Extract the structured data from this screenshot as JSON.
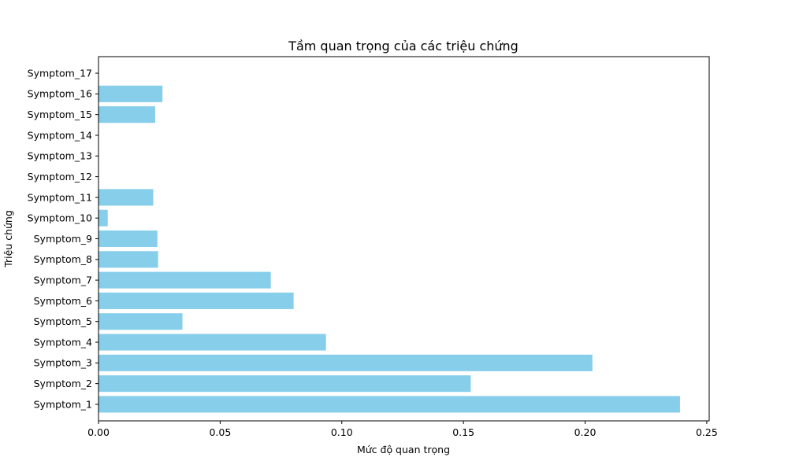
{
  "chart_data": {
    "type": "bar",
    "orientation": "horizontal",
    "title": "Tầm quan trọng của các triệu chứng",
    "xlabel": "Mức độ quan trọng",
    "ylabel": "Triệu chứng",
    "categories": [
      "Symptom_1",
      "Symptom_2",
      "Symptom_3",
      "Symptom_4",
      "Symptom_5",
      "Symptom_6",
      "Symptom_7",
      "Symptom_8",
      "Symptom_9",
      "Symptom_10",
      "Symptom_11",
      "Symptom_12",
      "Symptom_13",
      "Symptom_14",
      "Symptom_15",
      "Symptom_16",
      "Symptom_17"
    ],
    "values": [
      0.239,
      0.153,
      0.203,
      0.0935,
      0.0345,
      0.0802,
      0.0708,
      0.0245,
      0.0242,
      0.0038,
      0.0225,
      0.0,
      0.0,
      0.0,
      0.0233,
      0.0263,
      0.0
    ],
    "xlim": [
      0.0,
      0.251
    ],
    "xticks": [
      "0.00",
      "0.05",
      "0.10",
      "0.15",
      "0.20",
      "0.25"
    ],
    "grid": false,
    "bar_color": "#87CEEB"
  }
}
